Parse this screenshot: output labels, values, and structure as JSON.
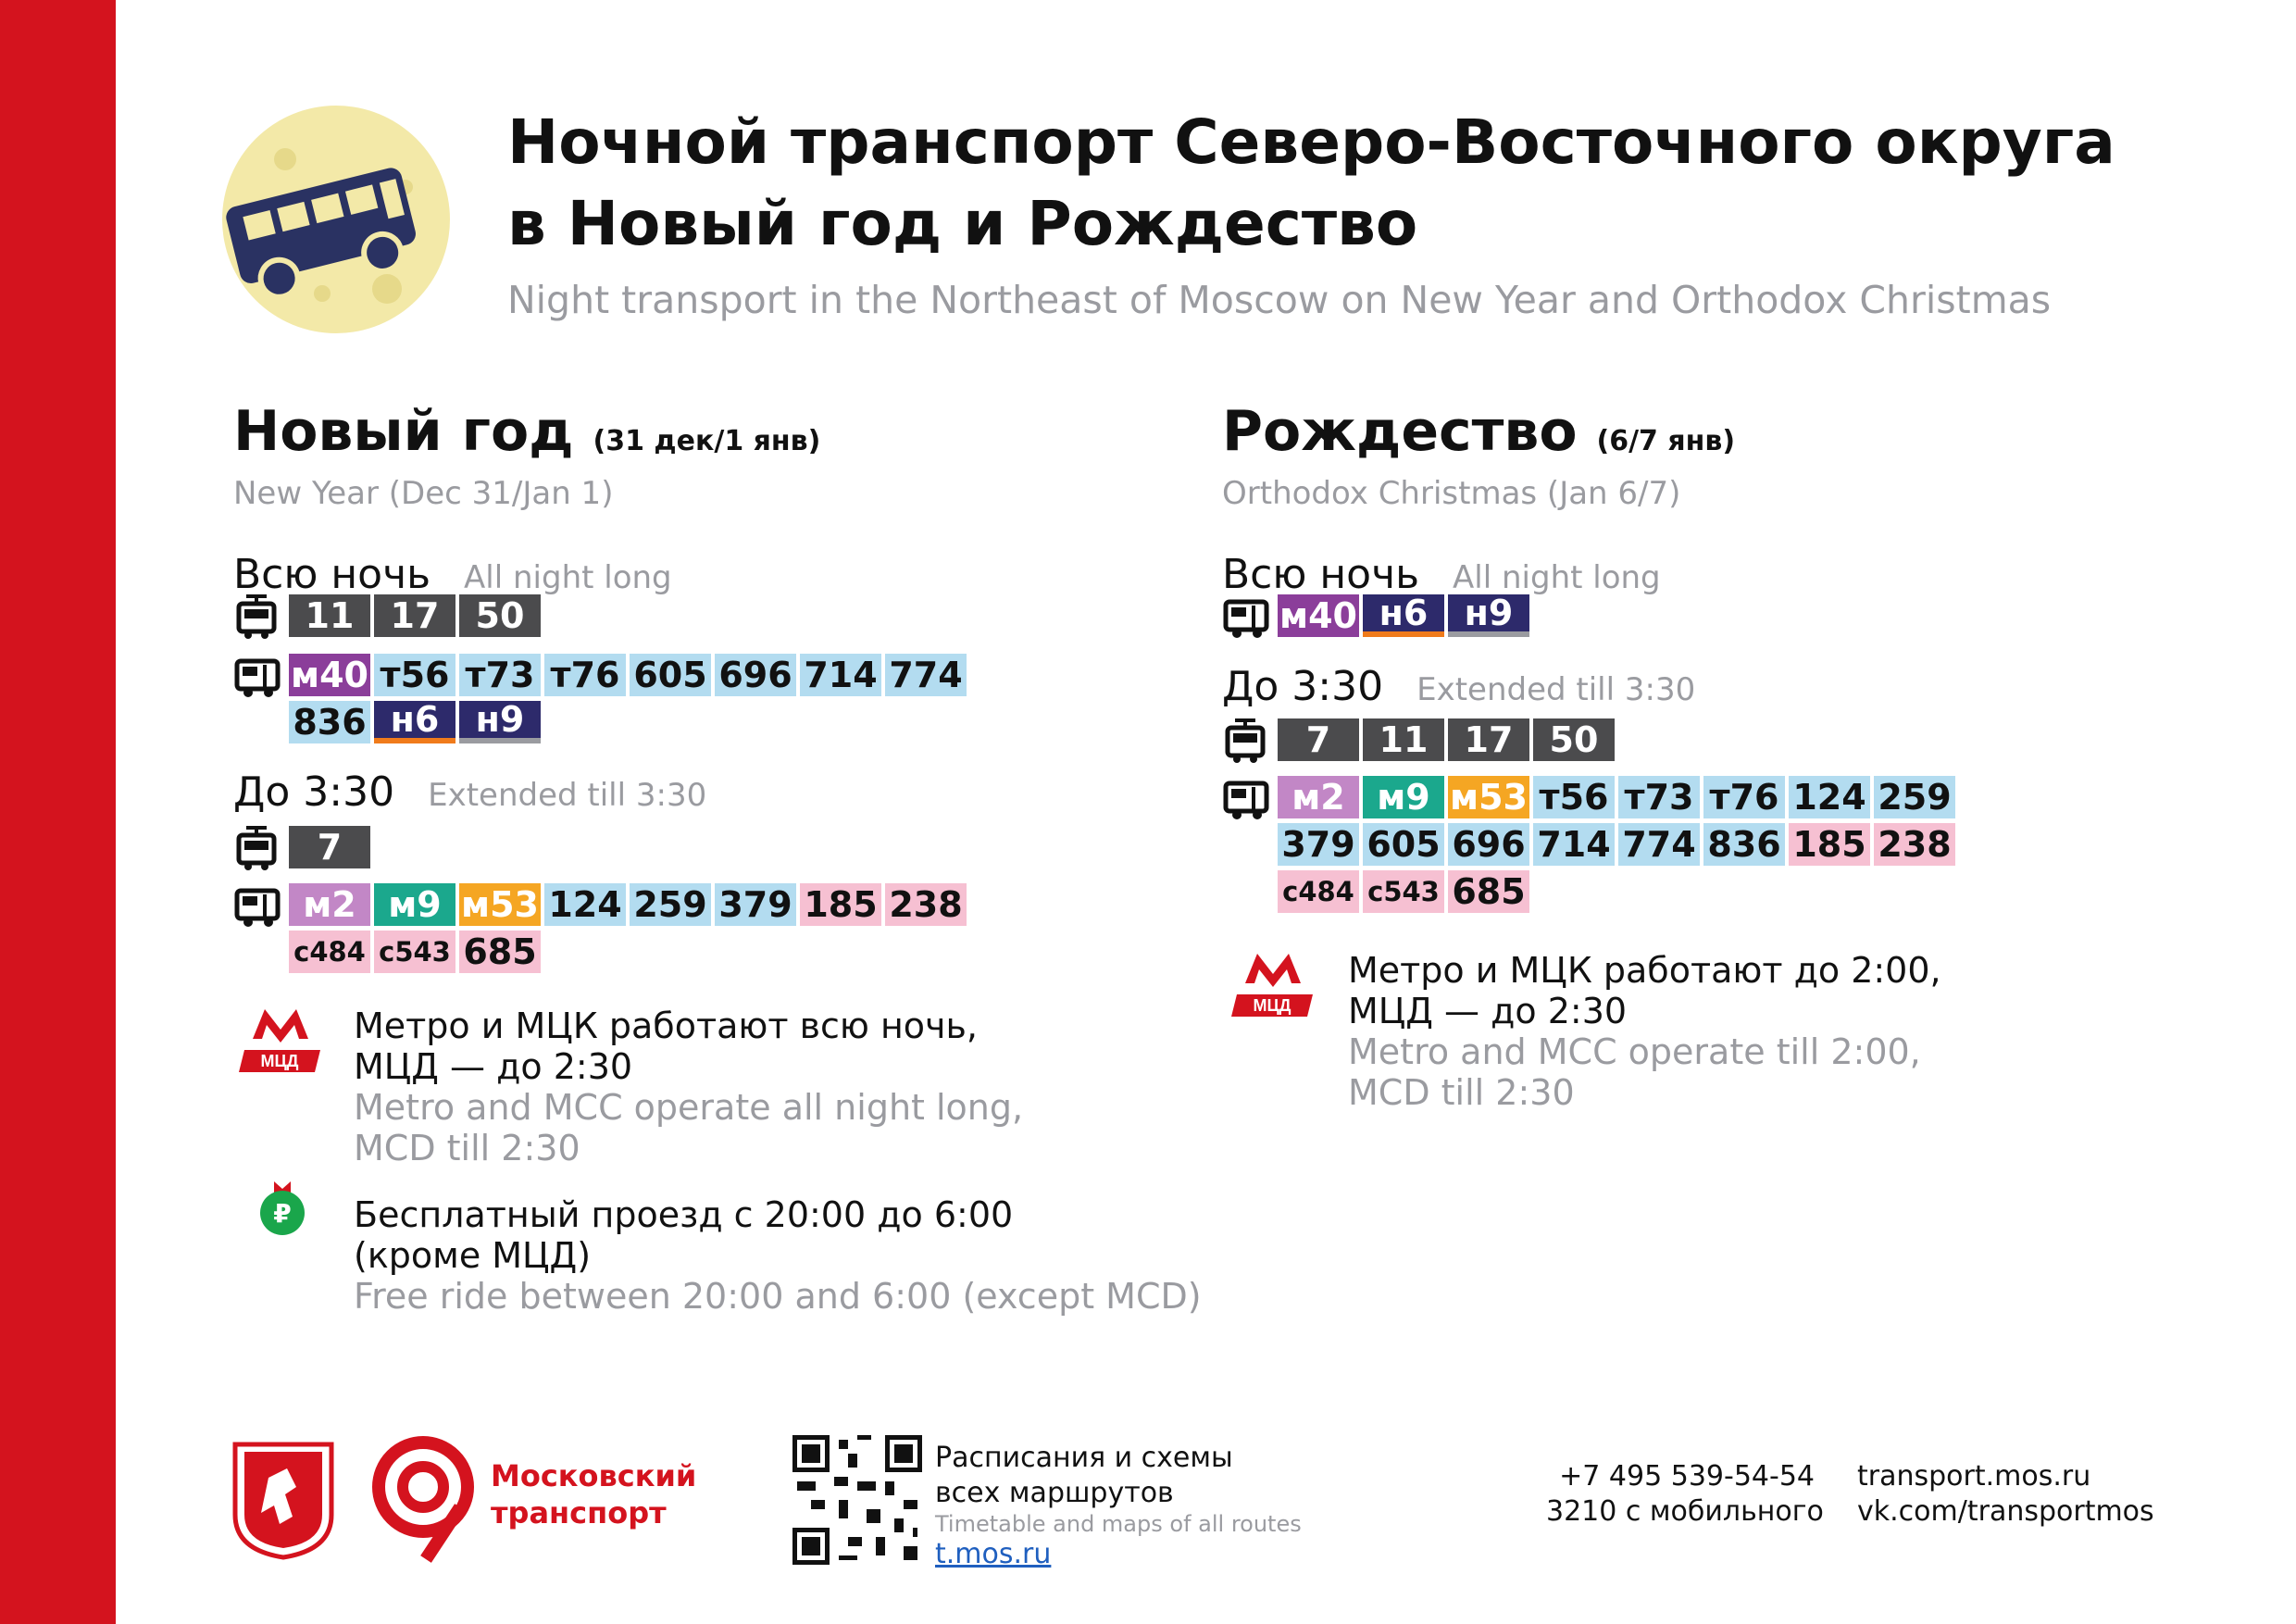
{
  "header": {
    "title_line1": "Ночной транспорт Северо-Восточного округа",
    "title_line2": "в Новый год и Рождество",
    "subtitle": "Night transport in the Northeast of Moscow on New Year and Orthodox Christmas"
  },
  "new_year": {
    "title": "Новый год",
    "date": "(31 дек/1 янв)",
    "title_en": "New Year (Dec 31/Jan 1)",
    "all_night": {
      "label": "Всю ночь",
      "label_en": "All night long",
      "trams": [
        "11",
        "17",
        "50"
      ],
      "buses": [
        "м40",
        "т56",
        "т73",
        "т76",
        "605",
        "696",
        "714",
        "774",
        "836",
        "н6",
        "н9"
      ]
    },
    "extended": {
      "label": "До 3:30",
      "label_en": "Extended till 3:30",
      "trams": [
        "7"
      ],
      "buses": [
        "м2",
        "м9",
        "м53",
        "124",
        "259",
        "379",
        "185",
        "238",
        "с484",
        "с543",
        "685"
      ]
    },
    "metro_note": "Метро и МЦК работают всю ночь,",
    "metro_note2": "МЦД — до 2:30",
    "metro_note_en": "Metro and MCC operate all night long,",
    "metro_note_en2": "MCD till 2:30",
    "free_note": "Бесплатный проезд с 20:00 до 6:00",
    "free_note2": "(кроме МЦД)",
    "free_note_en": "Free ride between 20:00 and 6:00 (except MCD)"
  },
  "christmas": {
    "title": "Рождество",
    "date": "(6/7 янв)",
    "title_en": "Orthodox Christmas (Jan 6/7)",
    "all_night": {
      "label": "Всю ночь",
      "label_en": "All night long",
      "buses": [
        "м40",
        "н6",
        "н9"
      ]
    },
    "extended": {
      "label": "До 3:30",
      "label_en": "Extended till 3:30",
      "trams": [
        "7",
        "11",
        "17",
        "50"
      ],
      "buses": [
        "м2",
        "м9",
        "м53",
        "т56",
        "т73",
        "т76",
        "124",
        "259",
        "379",
        "605",
        "696",
        "714",
        "774",
        "836",
        "185",
        "238",
        "с484",
        "с543",
        "685"
      ]
    },
    "metro_note": "Метро и МЦК работают до 2:00,",
    "metro_note2": "МЦД — до 2:30",
    "metro_note_en": "Metro and MCC operate till 2:00,",
    "metro_note_en2": "MCD till 2:30"
  },
  "badges": {
    "mcd": "МЦД"
  },
  "footer": {
    "brand_line1": "Московский",
    "brand_line2": "транспорт",
    "schedules": "Расписания и схемы",
    "schedules2": "всех маршрутов",
    "schedules_en": "Timetable and maps of all routes",
    "link": "t.mos.ru",
    "phone": "+7 495 539-54-54",
    "mobile": "3210 с мобильного",
    "site": "transport.mos.ru",
    "vk": "vk.com/transportmos"
  },
  "colors": {
    "red": "#d4131e",
    "tram": "#4b4b4d",
    "express_pink": "#c287c6",
    "express_teal": "#1ba88d",
    "express_orange": "#f5a623",
    "express_violet": "#8b3e9a",
    "night": "#2d2a6b",
    "trolley": "#b3dcf0",
    "social": "#f6c0d2"
  }
}
